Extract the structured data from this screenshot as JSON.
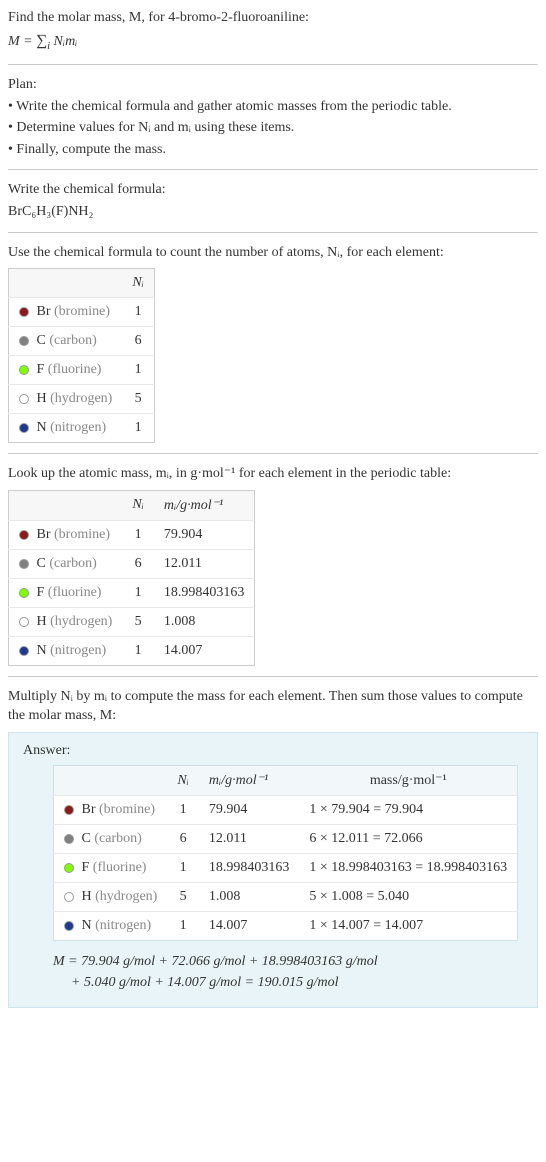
{
  "intro": {
    "line1": "Find the molar mass, M, for 4-bromo-2-fluoroaniline:",
    "formula_lhs": "M = ",
    "formula_sum": "∑",
    "formula_sub": "i",
    "formula_rhs": " Nᵢmᵢ"
  },
  "plan": {
    "heading": "Plan:",
    "b1": "• Write the chemical formula and gather atomic masses from the periodic table.",
    "b2": "• Determine values for Nᵢ and mᵢ using these items.",
    "b3": "• Finally, compute the mass."
  },
  "chemform": {
    "heading": "Write the chemical formula:",
    "value": "BrC₆H₃(F)NH₂"
  },
  "count": {
    "heading": "Use the chemical formula to count the number of atoms, Nᵢ, for each element:",
    "col_Ni": "Nᵢ",
    "rows": [
      {
        "color": "#8b1a1a",
        "sym": "Br",
        "name": "(bromine)",
        "n": "1"
      },
      {
        "color": "#808080",
        "sym": "C",
        "name": "(carbon)",
        "n": "6"
      },
      {
        "color": "#7fff00",
        "sym": "F",
        "name": "(fluorine)",
        "n": "1"
      },
      {
        "color": "#ffffff",
        "sym": "H",
        "name": "(hydrogen)",
        "n": "5"
      },
      {
        "color": "#1e3a8a",
        "sym": "N",
        "name": "(nitrogen)",
        "n": "1"
      }
    ]
  },
  "lookup": {
    "heading": "Look up the atomic mass, mᵢ, in g·mol⁻¹ for each element in the periodic table:",
    "col_Ni": "Nᵢ",
    "col_mi": "mᵢ/g·mol⁻¹",
    "rows": [
      {
        "color": "#8b1a1a",
        "sym": "Br",
        "name": "(bromine)",
        "n": "1",
        "m": "79.904"
      },
      {
        "color": "#808080",
        "sym": "C",
        "name": "(carbon)",
        "n": "6",
        "m": "12.011"
      },
      {
        "color": "#7fff00",
        "sym": "F",
        "name": "(fluorine)",
        "n": "1",
        "m": "18.998403163"
      },
      {
        "color": "#ffffff",
        "sym": "H",
        "name": "(hydrogen)",
        "n": "5",
        "m": "1.008"
      },
      {
        "color": "#1e3a8a",
        "sym": "N",
        "name": "(nitrogen)",
        "n": "1",
        "m": "14.007"
      }
    ]
  },
  "multiply": {
    "heading": "Multiply Nᵢ by mᵢ to compute the mass for each element. Then sum those values to compute the molar mass, M:"
  },
  "answer": {
    "label": "Answer:",
    "col_Ni": "Nᵢ",
    "col_mi": "mᵢ/g·mol⁻¹",
    "col_mass": "mass/g·mol⁻¹",
    "rows": [
      {
        "color": "#8b1a1a",
        "sym": "Br",
        "name": "(bromine)",
        "n": "1",
        "m": "79.904",
        "mass": "1 × 79.904 = 79.904"
      },
      {
        "color": "#808080",
        "sym": "C",
        "name": "(carbon)",
        "n": "6",
        "m": "12.011",
        "mass": "6 × 12.011 = 72.066"
      },
      {
        "color": "#7fff00",
        "sym": "F",
        "name": "(fluorine)",
        "n": "1",
        "m": "18.998403163",
        "mass": "1 × 18.998403163 = 18.998403163"
      },
      {
        "color": "#ffffff",
        "sym": "H",
        "name": "(hydrogen)",
        "n": "5",
        "m": "1.008",
        "mass": "5 × 1.008 = 5.040"
      },
      {
        "color": "#1e3a8a",
        "sym": "N",
        "name": "(nitrogen)",
        "n": "1",
        "m": "14.007",
        "mass": "1 × 14.007 = 14.007"
      }
    ],
    "eq1": "M = 79.904 g/mol + 72.066 g/mol + 18.998403163 g/mol",
    "eq2": "+ 5.040 g/mol + 14.007 g/mol = 190.015 g/mol"
  }
}
